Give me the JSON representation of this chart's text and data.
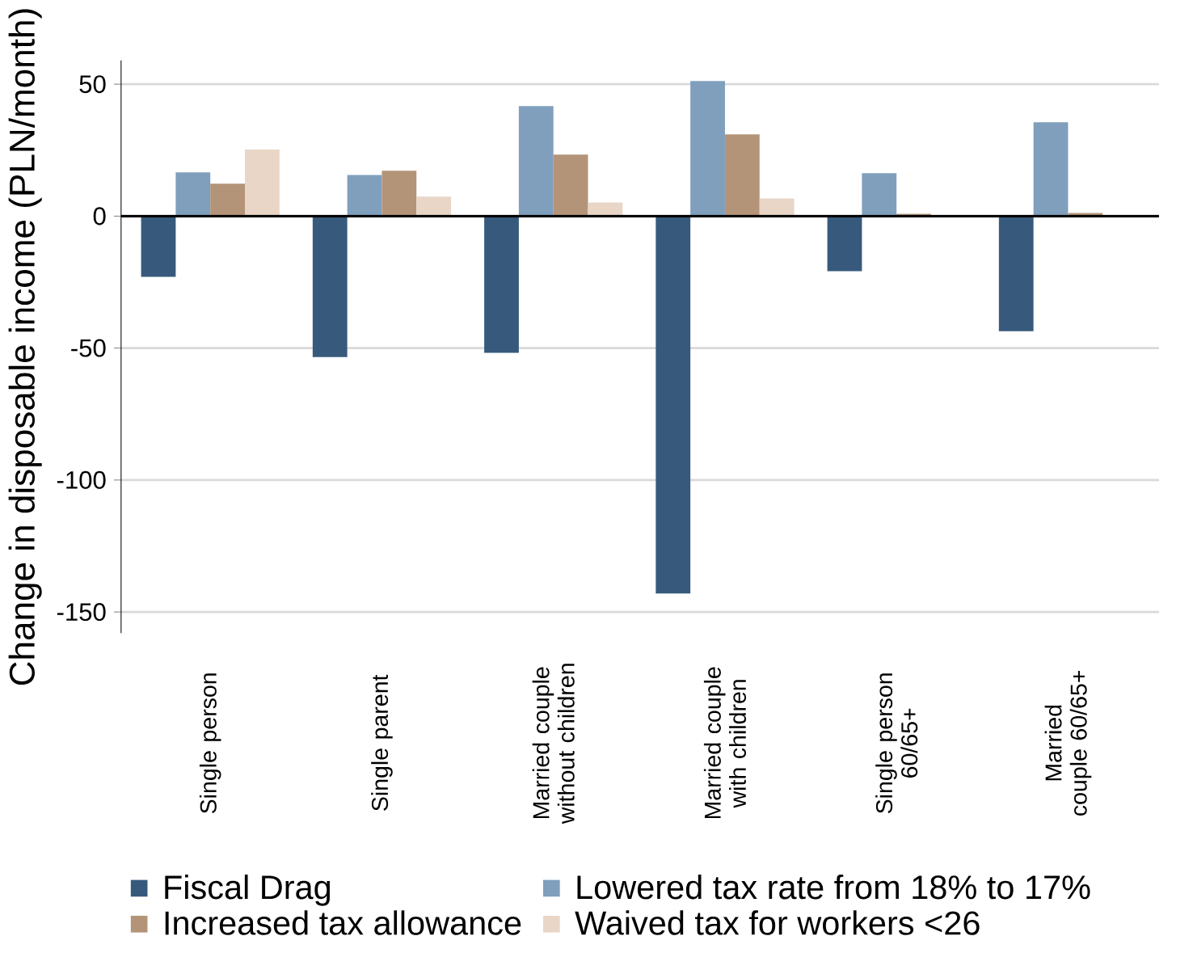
{
  "chart_data": {
    "type": "bar",
    "ylabel": "Change in disposable income (PLN/month)",
    "categories": [
      "Single person",
      "Single parent",
      "Married couple without children",
      "Married couple with children",
      "Single person 60/65+",
      "Married couple 60/65+"
    ],
    "series": [
      {
        "name": "Fiscal Drag",
        "color": "#375a7c",
        "values": [
          -23,
          -53.4,
          -51.8,
          -143,
          -20.9,
          -43.6
        ]
      },
      {
        "name": "Lowered tax rate from 18% to 17%",
        "color": "#7f9fbd",
        "values": [
          16.6,
          15.6,
          41.7,
          51.2,
          16.3,
          35.6
        ]
      },
      {
        "name": "Increased tax allowance",
        "color": "#b39478",
        "values": [
          12.3,
          17.2,
          23.3,
          31,
          0.9,
          1.2
        ]
      },
      {
        "name": "Waived tax for workers <26",
        "color": "#e9d6c6",
        "values": [
          25.2,
          7.4,
          5.2,
          6.7,
          0.3,
          0
        ]
      }
    ],
    "ylim": [
      -158,
      59
    ],
    "yticks": [
      -150,
      -100,
      -50,
      0,
      50
    ],
    "grid": "y",
    "legend": "bottom",
    "ref_lines": [
      {
        "axis": "y",
        "value": 0,
        "color": "#000000"
      }
    ]
  }
}
